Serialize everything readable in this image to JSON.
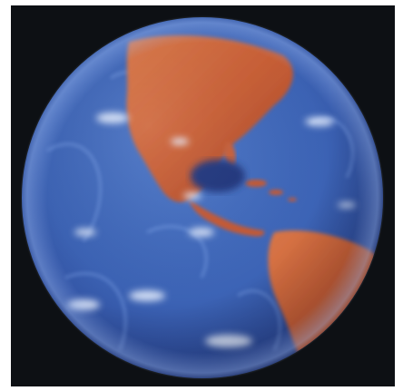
{
  "image": {
    "subject": "earth-globe",
    "colors": {
      "frame_background": "#ffffff",
      "panel_background": "#0d1014",
      "ocean_light": "#7aa6e6",
      "ocean_mid": "#3f64b8",
      "ocean_deep": "#1b2a62",
      "land": "#cc6b3f",
      "land_highlight": "#f07e4e",
      "cloud": "#e9f1ff"
    }
  }
}
